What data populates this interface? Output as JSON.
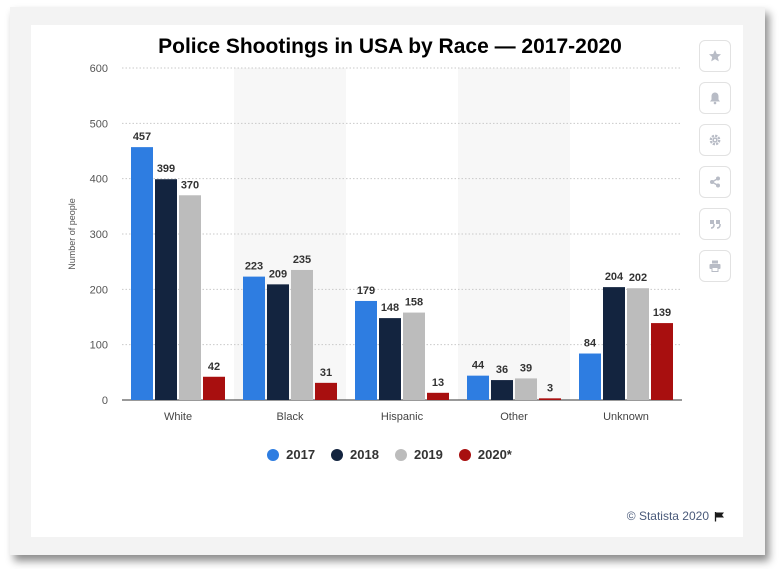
{
  "chart_data": {
    "type": "bar",
    "title": "Police Shootings in USA by Race — 2017-2020",
    "ylabel": "Number of people",
    "xlabel": "",
    "ylim": [
      0,
      600
    ],
    "yticks": [
      0,
      100,
      200,
      300,
      400,
      500,
      600
    ],
    "grid": true,
    "legend_position": "bottom",
    "categories": [
      "White",
      "Black",
      "Hispanic",
      "Other",
      "Unknown"
    ],
    "series": [
      {
        "name": "2017",
        "color": "#2e7de1",
        "values": [
          457,
          223,
          179,
          44,
          84
        ]
      },
      {
        "name": "2018",
        "color": "#13243f",
        "values": [
          399,
          209,
          148,
          36,
          204
        ]
      },
      {
        "name": "2019",
        "color": "#bcbcbc",
        "values": [
          370,
          235,
          158,
          39,
          202
        ]
      },
      {
        "name": "2020*",
        "color": "#a80f0f",
        "values": [
          42,
          31,
          13,
          3,
          139
        ]
      }
    ]
  },
  "credit": "© Statista 2020",
  "toolbar": {
    "icons": [
      "star-icon",
      "bell-icon",
      "gear-icon",
      "share-icon",
      "quote-icon",
      "print-icon"
    ]
  }
}
